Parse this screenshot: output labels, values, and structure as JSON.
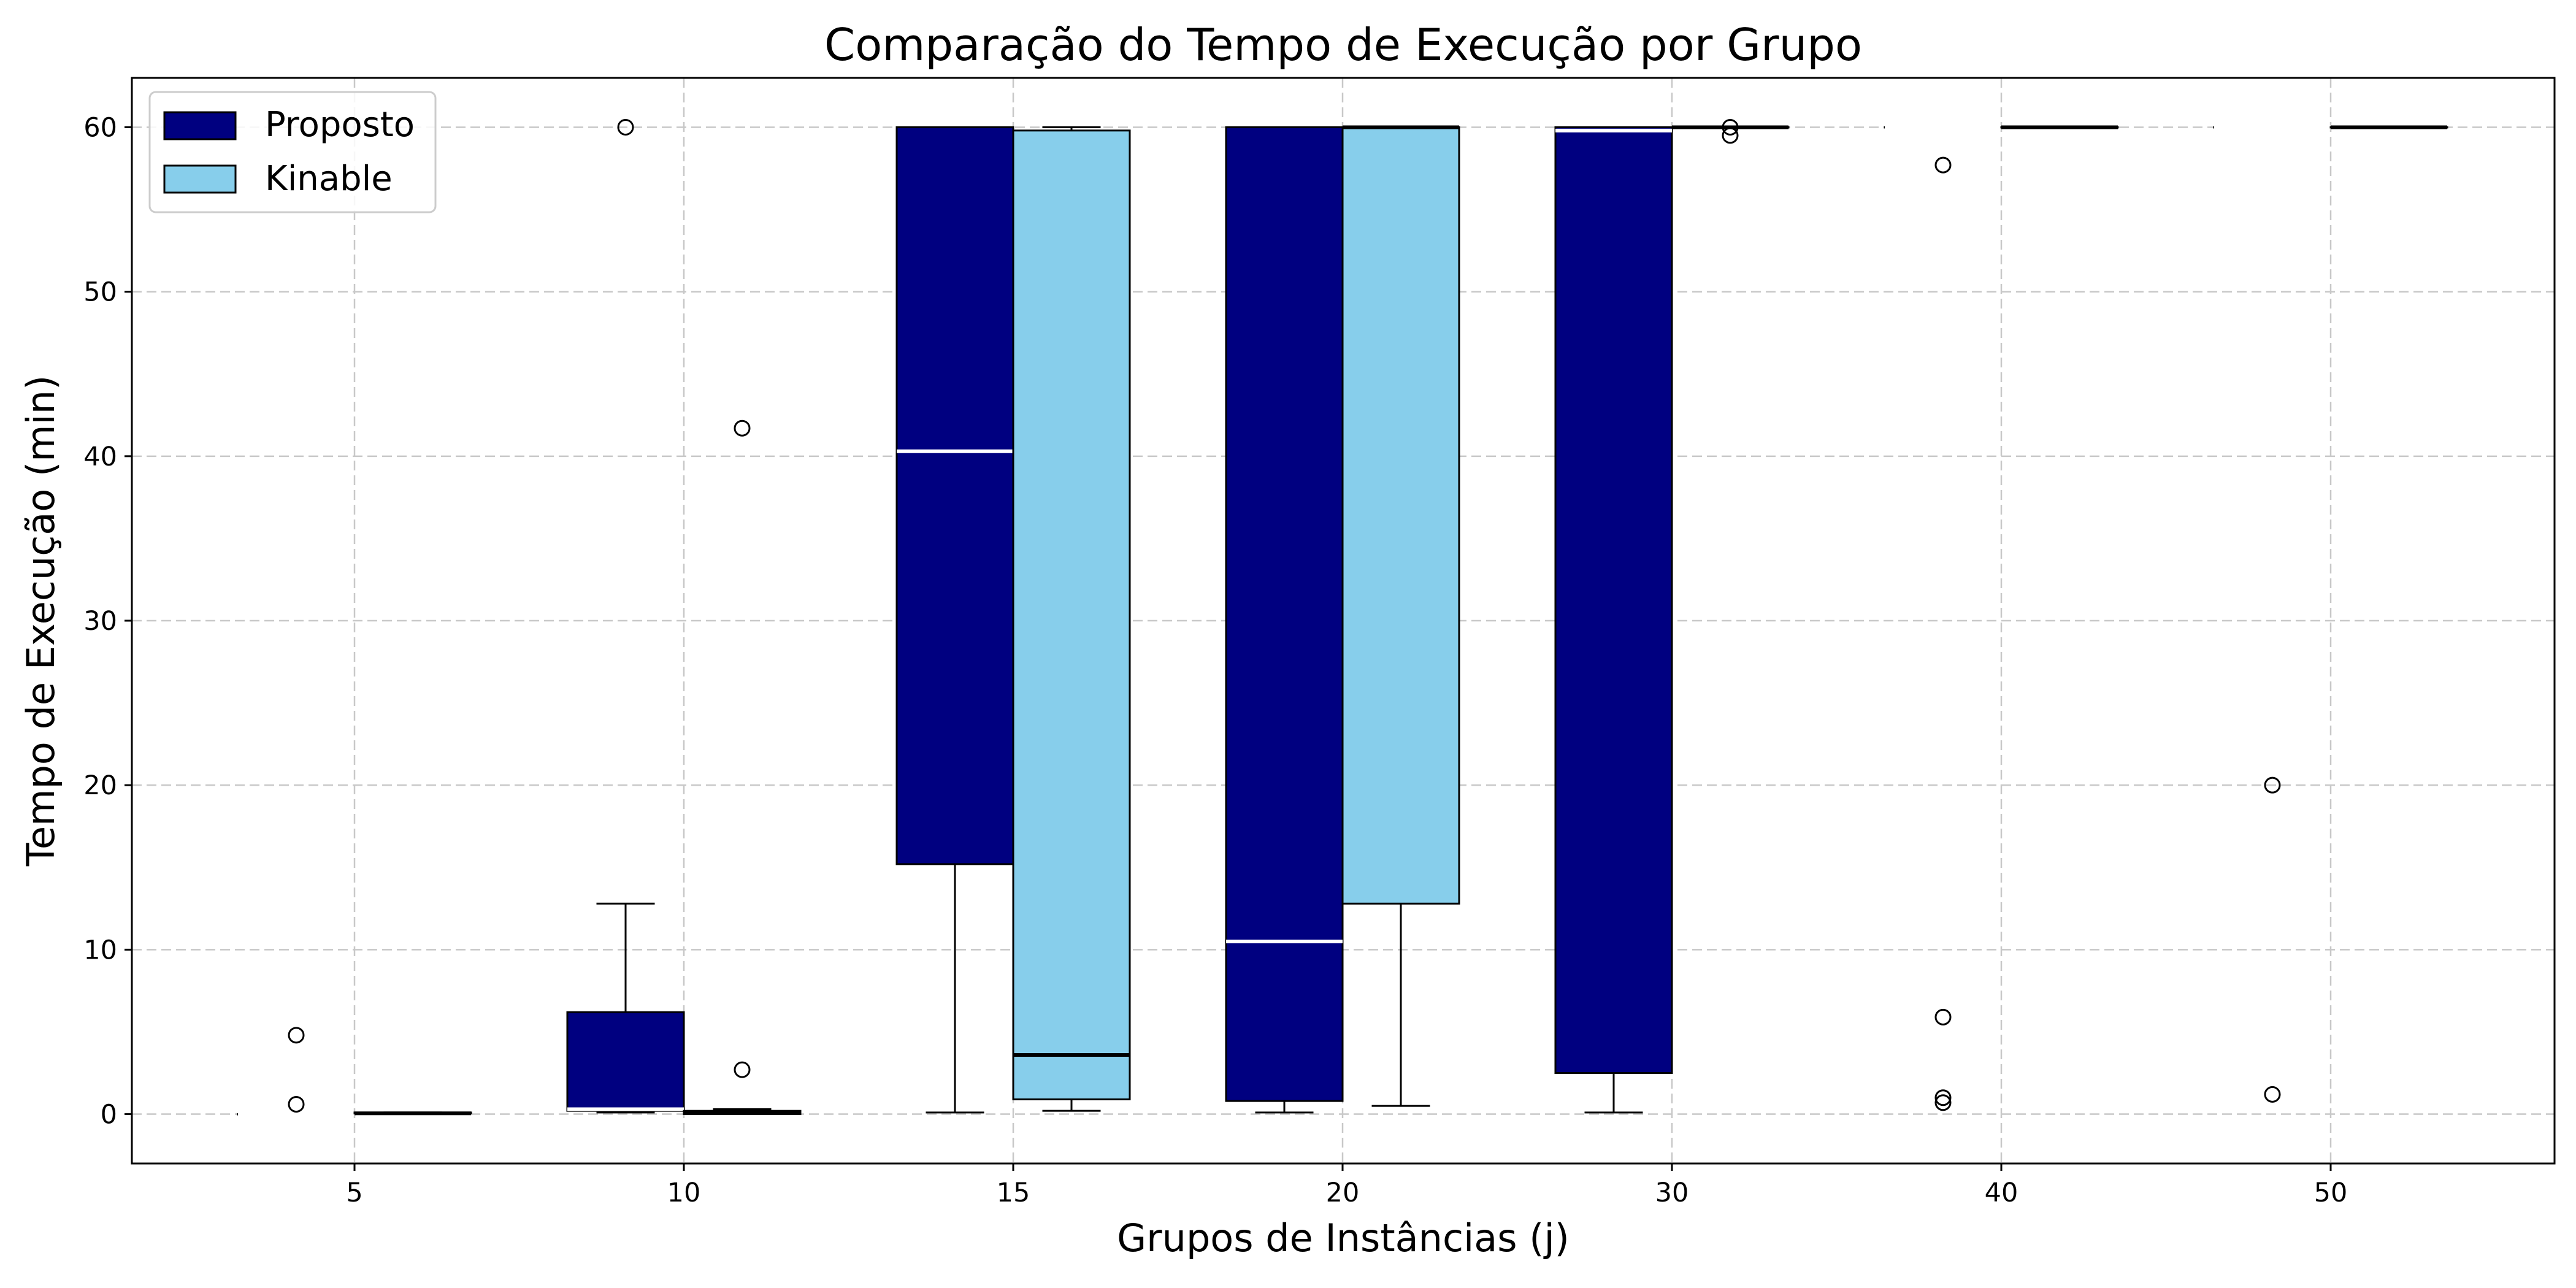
{
  "chart_data": {
    "type": "boxplot",
    "title": "Comparação do Tempo de Execução por Grupo",
    "xlabel": "Grupos de Instâncias (j)",
    "ylabel": "Tempo de Execução (min)",
    "categories": [
      "5",
      "10",
      "15",
      "20",
      "30",
      "40",
      "50"
    ],
    "yticks": [
      0,
      10,
      20,
      30,
      40,
      50,
      60
    ],
    "ylim": [
      -3,
      63
    ],
    "grid": true,
    "legend_position": "top-left",
    "series": [
      {
        "name": "Proposto",
        "color": "#000080",
        "median_color": "#ffffff",
        "boxes": [
          {
            "q1": 0,
            "median": 0,
            "q3": 0,
            "whisker_low": 0,
            "whisker_high": 0,
            "outliers": [
              4.8,
              0.6
            ]
          },
          {
            "q1": 0.2,
            "median": 0.3,
            "q3": 6.2,
            "whisker_low": 0.1,
            "whisker_high": 12.8,
            "outliers": [
              60
            ]
          },
          {
            "q1": 15.2,
            "median": 40.3,
            "q3": 60,
            "whisker_low": 0.1,
            "whisker_high": 60,
            "outliers": []
          },
          {
            "q1": 0.8,
            "median": 10.5,
            "q3": 60,
            "whisker_low": 0.1,
            "whisker_high": 60,
            "outliers": []
          },
          {
            "q1": 2.5,
            "median": 59.8,
            "q3": 60,
            "whisker_low": 0.1,
            "whisker_high": 60,
            "outliers": []
          },
          {
            "q1": 60,
            "median": 60,
            "q3": 60,
            "whisker_low": 60,
            "whisker_high": 60,
            "outliers": [
              57.7,
              5.9,
              1.0,
              0.7
            ]
          },
          {
            "q1": 60,
            "median": 60,
            "q3": 60,
            "whisker_low": 60,
            "whisker_high": 60,
            "outliers": [
              20,
              1.2
            ]
          }
        ]
      },
      {
        "name": "Kinable",
        "color": "#87ceeb",
        "median_color": "#000000",
        "boxes": [
          {
            "q1": 0.05,
            "median": 0.05,
            "q3": 0.1,
            "whisker_low": 0.05,
            "whisker_high": 0.1,
            "outliers": []
          },
          {
            "q1": 0,
            "median": 0.1,
            "q3": 0.2,
            "whisker_low": 0,
            "whisker_high": 0.3,
            "outliers": [
              41.7,
              2.7
            ]
          },
          {
            "q1": 0.9,
            "median": 3.6,
            "q3": 59.8,
            "whisker_low": 0.2,
            "whisker_high": 60,
            "outliers": []
          },
          {
            "q1": 12.8,
            "median": 60,
            "q3": 60,
            "whisker_low": 0.5,
            "whisker_high": 60,
            "outliers": []
          },
          {
            "q1": 60,
            "median": 60,
            "q3": 60,
            "whisker_low": 60,
            "whisker_high": 60,
            "outliers": [
              60,
              59.5
            ]
          },
          {
            "q1": 60,
            "median": 60,
            "q3": 60,
            "whisker_low": 60,
            "whisker_high": 60,
            "outliers": []
          },
          {
            "q1": 60,
            "median": 60,
            "q3": 60,
            "whisker_low": 60,
            "whisker_high": 60,
            "outliers": []
          }
        ]
      }
    ]
  }
}
